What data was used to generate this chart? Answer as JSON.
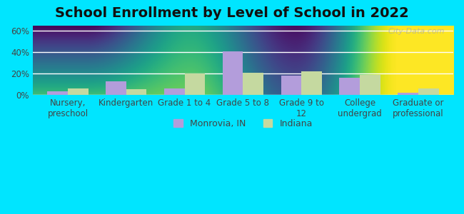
{
  "title": "School Enrollment by Level of School in 2022",
  "categories": [
    "Nursery,\npreschool",
    "Kindergarten",
    "Grade 1 to 4",
    "Grade 5 to 8",
    "Grade 9 to\n12",
    "College\nundergrad",
    "Graduate or\nprofessional"
  ],
  "monrovia_values": [
    3.5,
    13.0,
    6.0,
    41.0,
    18.5,
    16.5,
    2.0
  ],
  "indiana_values": [
    6.5,
    5.5,
    20.5,
    21.0,
    22.5,
    19.0,
    6.0
  ],
  "monrovia_color": "#b39ddb",
  "indiana_color": "#c5d9a0",
  "background_outer": "#00e5ff",
  "background_plot_top": "#e8f5e9",
  "background_plot_bottom": "#f0f4e8",
  "ylim": [
    0,
    65
  ],
  "yticks": [
    0,
    20,
    40,
    60
  ],
  "ytick_labels": [
    "0%",
    "20%",
    "40%",
    "60%"
  ],
  "watermark": "City-Data.com",
  "legend_label1": "Monrovia, IN",
  "legend_label2": "Indiana",
  "bar_width": 0.35,
  "title_fontsize": 14,
  "tick_fontsize": 8.5,
  "legend_fontsize": 9
}
